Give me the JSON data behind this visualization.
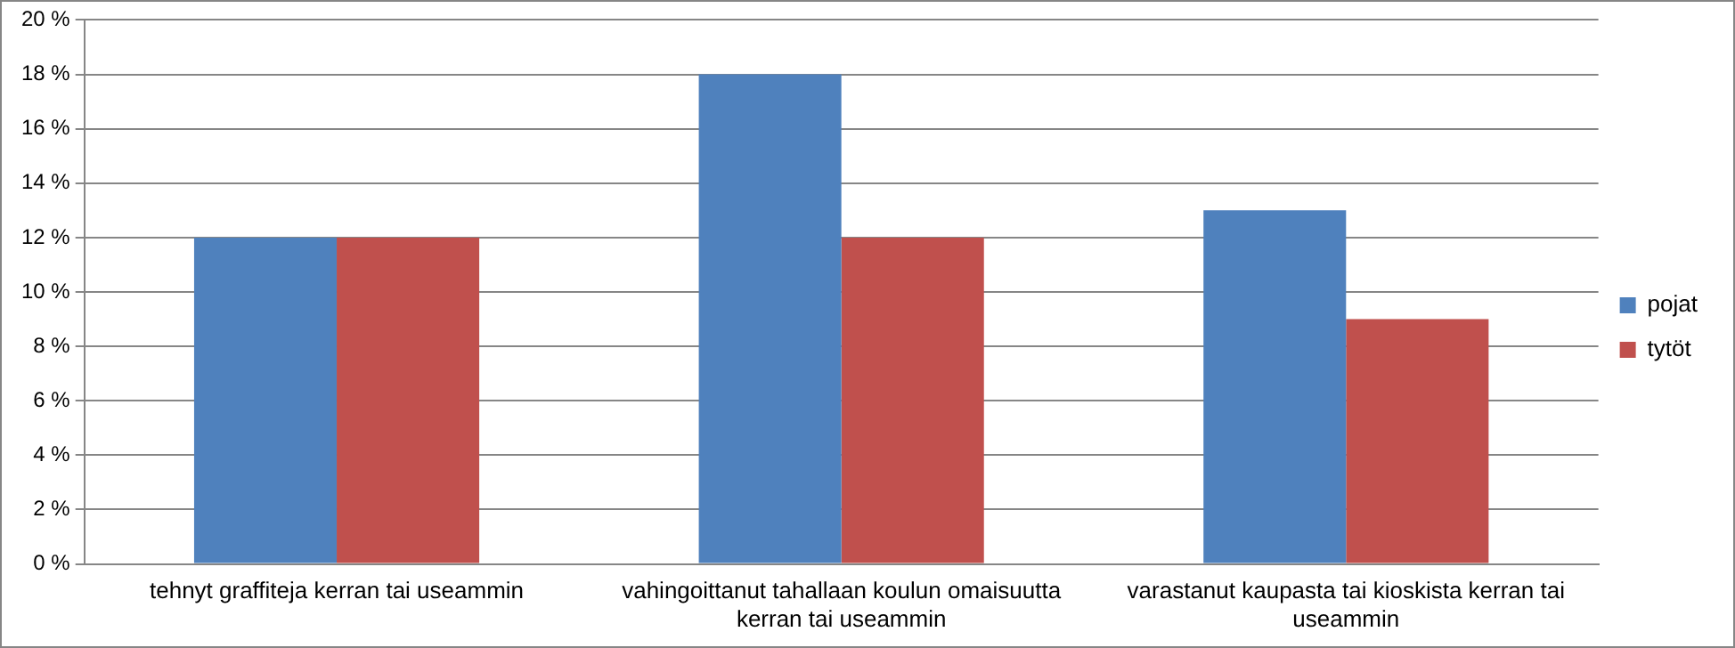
{
  "chart_data": {
    "type": "bar",
    "categories": [
      "tehnyt graffiteja kerran tai useammin",
      "vahingoittanut tahallaan koulun omaisuutta kerran tai useammin",
      "varastanut kaupasta tai kioskista kerran tai useammin"
    ],
    "series": [
      {
        "name": "pojat",
        "color": "#4f81bd",
        "values": [
          12,
          18,
          13
        ]
      },
      {
        "name": "tytöt",
        "color": "#c0504d",
        "values": [
          12,
          12,
          9
        ]
      }
    ],
    "ylim": [
      0,
      20
    ],
    "yticks": [
      {
        "value": 0,
        "label": "0 %"
      },
      {
        "value": 2,
        "label": "2 %"
      },
      {
        "value": 4,
        "label": "4 %"
      },
      {
        "value": 6,
        "label": "6 %"
      },
      {
        "value": 8,
        "label": "8 %"
      },
      {
        "value": 10,
        "label": "10 %"
      },
      {
        "value": 12,
        "label": "12 %"
      },
      {
        "value": 14,
        "label": "14 %"
      },
      {
        "value": 16,
        "label": "16 %"
      },
      {
        "value": 18,
        "label": "18 %"
      },
      {
        "value": 20,
        "label": "20 %"
      }
    ],
    "grid": "y",
    "legend": "right"
  }
}
